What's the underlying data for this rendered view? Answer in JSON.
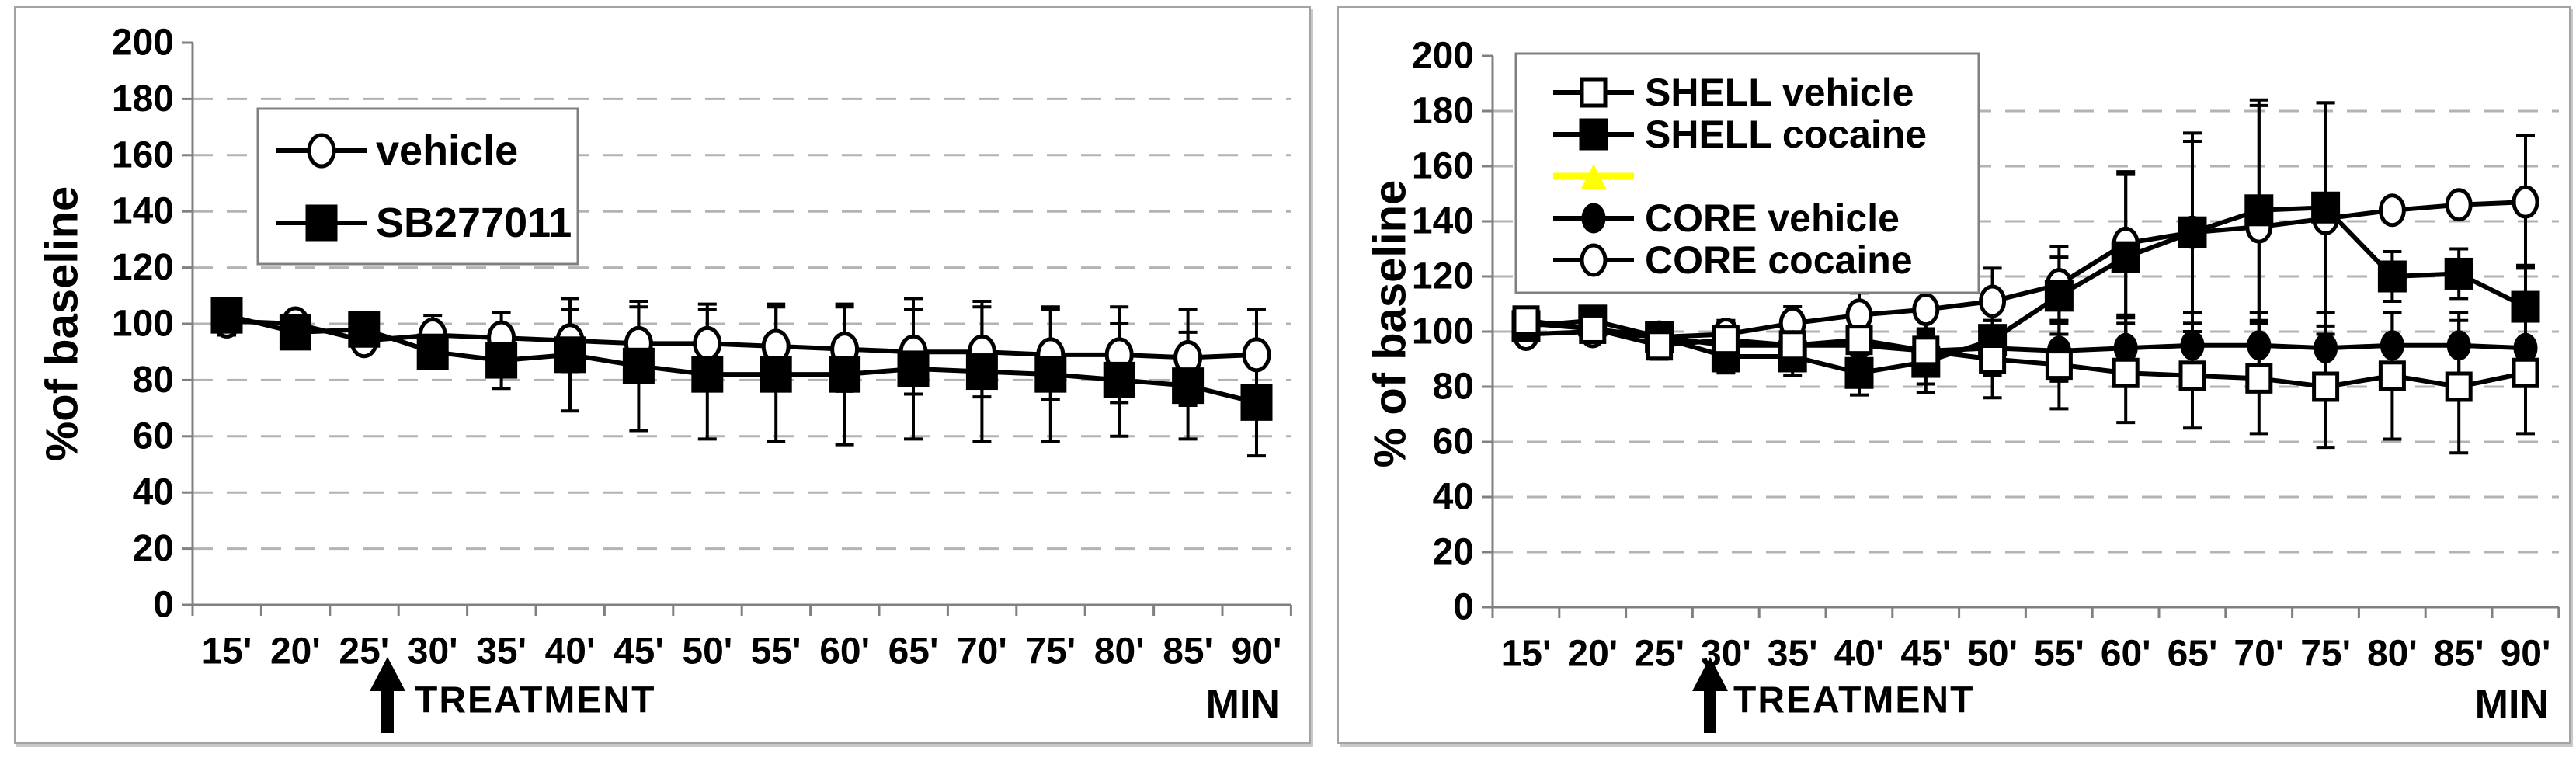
{
  "page": {
    "background": "#ffffff"
  },
  "chart_data": [
    {
      "id": "left-chart",
      "type": "line",
      "title": "",
      "ylabel": "%of baseline",
      "xlabel": "MIN",
      "annotation": {
        "text": "TREATMENT",
        "arrow_between": [
          "25'",
          "30'"
        ]
      },
      "ylim": [
        0,
        200
      ],
      "ytick_step": 20,
      "grid": "dashed-horizontal",
      "legend_position": "upper-left-inside",
      "categories": [
        "15'",
        "20'",
        "25'",
        "30'",
        "35'",
        "40'",
        "45'",
        "50'",
        "55'",
        "60'",
        "65'",
        "70'",
        "75'",
        "80'",
        "85'",
        "90'"
      ],
      "series": [
        {
          "name": "vehicle",
          "marker": "circle-open",
          "color": "#000000",
          "values": [
            101,
            100,
            94,
            96,
            95,
            94,
            93,
            93,
            92,
            91,
            90,
            90,
            89,
            89,
            88,
            89
          ],
          "err": [
            5,
            3,
            3,
            7,
            9,
            11,
            13,
            14,
            15,
            15,
            15,
            16,
            16,
            17,
            17,
            16
          ]
        },
        {
          "name": "SB277011",
          "marker": "square-filled",
          "color": "#000000",
          "values": [
            103,
            97,
            98,
            90,
            87,
            89,
            85,
            82,
            82,
            82,
            84,
            83,
            82,
            80,
            78,
            72
          ],
          "err": [
            6,
            4,
            4,
            6,
            10,
            20,
            23,
            23,
            24,
            25,
            25,
            25,
            24,
            20,
            19,
            19
          ]
        }
      ]
    },
    {
      "id": "right-chart",
      "type": "line",
      "title": "",
      "ylabel": "% of baseline",
      "xlabel": "MIN",
      "annotation": {
        "text": "TREATMENT",
        "arrow_between": [
          "25'",
          "30'"
        ]
      },
      "ylim": [
        0,
        200
      ],
      "ytick_step": 20,
      "grid": "dashed-horizontal",
      "legend_position": "upper-left-inside",
      "categories": [
        "15'",
        "20'",
        "25'",
        "30'",
        "35'",
        "40'",
        "45'",
        "50'",
        "55'",
        "60'",
        "65'",
        "70'",
        "75'",
        "80'",
        "85'",
        "90'"
      ],
      "series": [
        {
          "name": "SHELL vehicle",
          "marker": "square-open",
          "color": "#000000",
          "values": [
            104,
            101,
            95,
            97,
            95,
            97,
            93,
            90,
            88,
            85,
            84,
            83,
            80,
            84,
            80,
            85
          ],
          "err": [
            3,
            3,
            5,
            6,
            7,
            9,
            12,
            14,
            16,
            18,
            19,
            20,
            22,
            23,
            24,
            22
          ]
        },
        {
          "name": "SHELL cocaine",
          "marker": "square-filled",
          "color": "#000000",
          "values": [
            102,
            104,
            98,
            91,
            91,
            85,
            89,
            97,
            113,
            127,
            136,
            144,
            145,
            120,
            121,
            109
          ],
          "err": [
            3,
            4,
            4,
            6,
            7,
            8,
            11,
            12,
            14,
            30,
            36,
            40,
            38,
            9,
            9,
            15
          ]
        },
        {
          "name": "",
          "marker": "triangle-filled",
          "color": "#ffff00",
          "legend_only": true,
          "values": [],
          "err": []
        },
        {
          "name": "CORE vehicle",
          "marker": "circle-filled",
          "color": "#000000",
          "values": [
            103,
            101,
            98,
            95,
            95,
            95,
            93,
            94,
            93,
            94,
            95,
            95,
            94,
            95,
            95,
            94
          ],
          "err": [
            3,
            3,
            4,
            5,
            6,
            7,
            8,
            10,
            11,
            11,
            12,
            12,
            13,
            12,
            12,
            13
          ]
        },
        {
          "name": "CORE cocaine",
          "marker": "circle-open",
          "color": "#000000",
          "values": [
            99,
            100,
            98,
            99,
            103,
            106,
            108,
            111,
            117,
            132,
            136,
            138,
            141,
            144,
            146,
            147
          ],
          "err": [
            4,
            3,
            4,
            5,
            6,
            8,
            9,
            12,
            14,
            26,
            33,
            44,
            42,
            4,
            4,
            24
          ]
        }
      ]
    }
  ]
}
